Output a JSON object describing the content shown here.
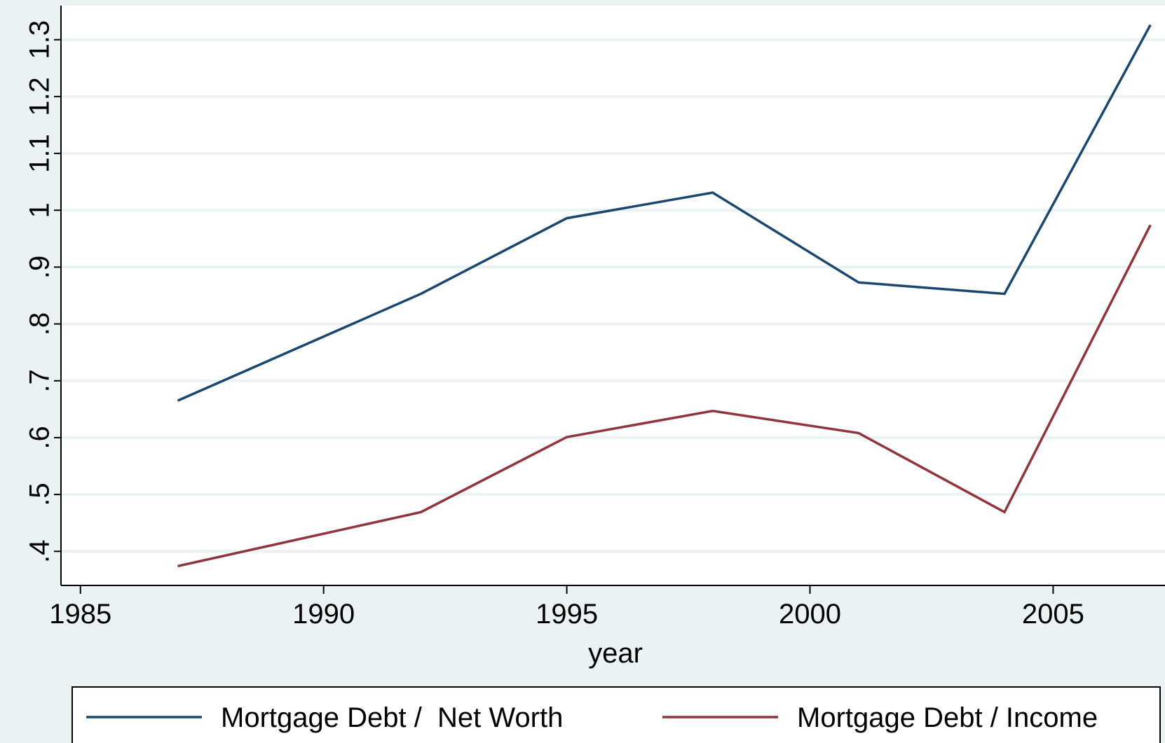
{
  "chart_data": {
    "type": "line",
    "x_label": "year",
    "x": [
      1987,
      1992,
      1995,
      1998,
      2001,
      2004,
      2007
    ],
    "series": [
      {
        "name": "Mortgage Debt /  Net Worth",
        "color": "#1a476f",
        "values": [
          0.665,
          0.853,
          0.986,
          1.031,
          0.873,
          0.853,
          1.326
        ]
      },
      {
        "name": "Mortgage Debt / Income",
        "color": "#90353b",
        "values": [
          0.374,
          0.469,
          0.601,
          0.647,
          0.608,
          0.469,
          0.974
        ]
      }
    ],
    "xlim": [
      1984.6,
      2007.3
    ],
    "xticks": [
      1985,
      1990,
      1995,
      2000,
      2005
    ],
    "ylim": [
      0.34,
      1.36
    ],
    "yticks": [
      {
        "value": 0.4,
        "label": ".4"
      },
      {
        "value": 0.5,
        "label": ".5"
      },
      {
        "value": 0.6,
        "label": ".6"
      },
      {
        "value": 0.7,
        "label": ".7"
      },
      {
        "value": 0.8,
        "label": ".8"
      },
      {
        "value": 0.9,
        "label": ".9"
      },
      1,
      1.1,
      1.2,
      1.3
    ],
    "grid": true,
    "legend": "bottom"
  }
}
